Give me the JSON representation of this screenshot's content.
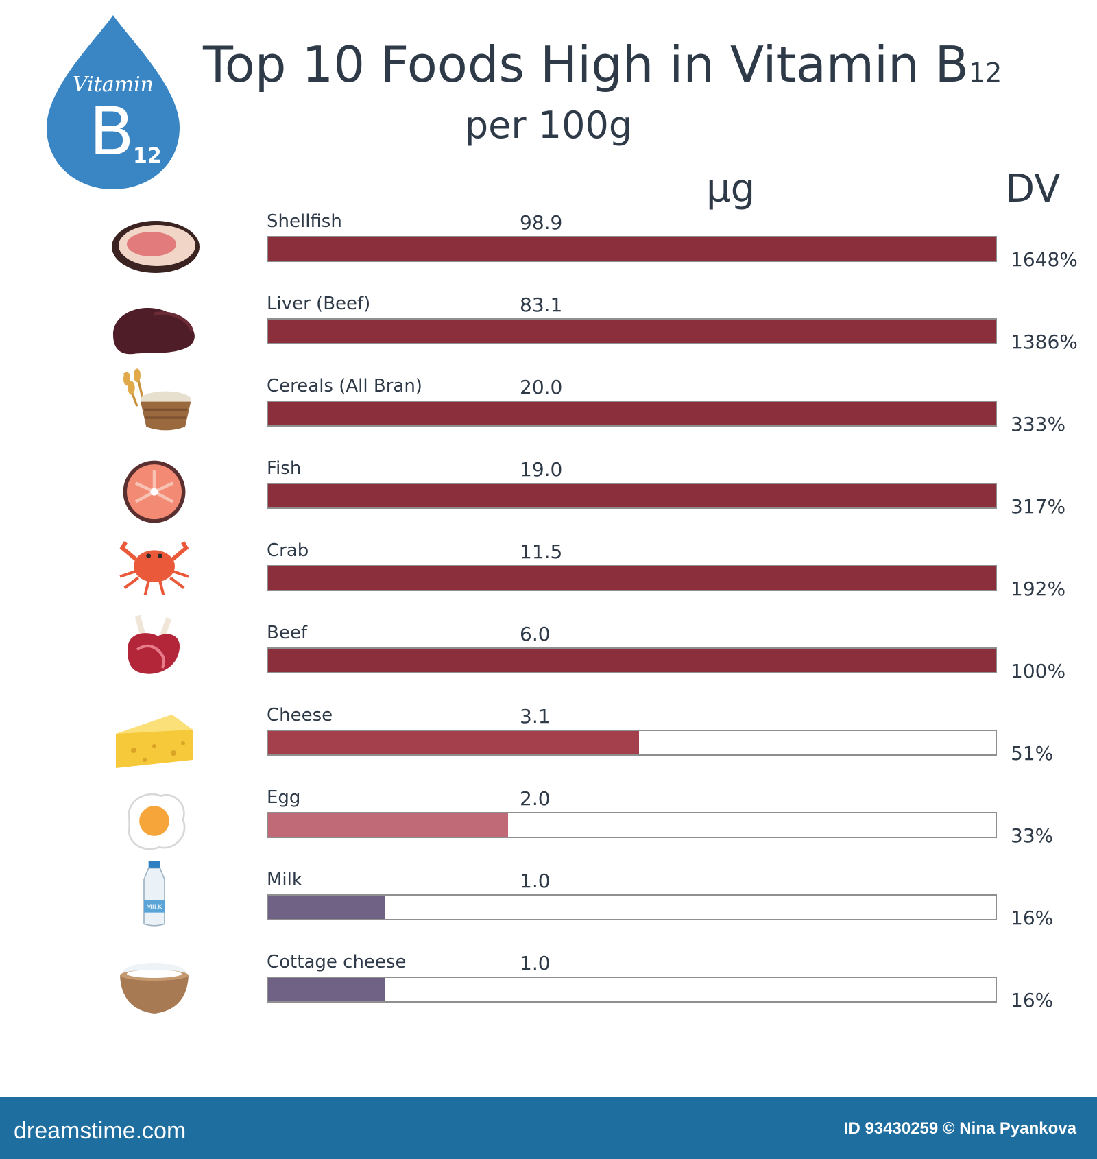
{
  "badge": {
    "word": "Vitamin",
    "letter": "B",
    "subscript": "12",
    "color": "#3a86c4"
  },
  "title": {
    "main": "Top 10 Foods High in Vitamin B",
    "subscript": "12",
    "sub": "per 100g"
  },
  "columns": {
    "ug": "µg",
    "dv": "DV"
  },
  "chart_data": {
    "type": "bar",
    "title": "Top 10 Foods High in Vitamin B12",
    "subtitle": "per 100g",
    "categories": [
      "Shellfish",
      "Liver (Beef)",
      "Cereals (All Bran)",
      "Fish",
      "Crab",
      "Beef",
      "Cheese",
      "Egg",
      "Milk",
      "Cottage cheese"
    ],
    "series": [
      {
        "name": "µg",
        "values": [
          98.9,
          83.1,
          20.0,
          19.0,
          11.5,
          6.0,
          3.1,
          2.0,
          1.0,
          1.0
        ],
        "labels": [
          "98.9",
          "83.1",
          "20.0",
          "19.0",
          "11.5",
          "6.0",
          "3.1",
          "2.0",
          "1.0",
          "1.0"
        ]
      },
      {
        "name": "DV",
        "values": [
          1648,
          1386,
          333,
          317,
          192,
          100,
          51,
          33,
          16,
          16
        ],
        "labels": [
          "1648%",
          "1386%",
          "333%",
          "317%",
          "192%",
          "100%",
          "51%",
          "33%",
          "16%",
          "16%"
        ]
      }
    ],
    "bar_max_percent": 100,
    "bar_colors": [
      "#8b2f3d",
      "#8b2f3d",
      "#8b2f3d",
      "#8b2f3d",
      "#8b2f3d",
      "#8b2f3d",
      "#a43f4c",
      "#c06a78",
      "#6f6284",
      "#6f6284"
    ],
    "icons": [
      "shellfish-icon",
      "liver-icon",
      "cereal-bowl-icon",
      "fish-steak-icon",
      "crab-icon",
      "beef-icon",
      "cheese-icon",
      "egg-icon",
      "milk-bottle-icon",
      "cottage-cheese-icon"
    ],
    "milk_label": "MILK"
  },
  "footer": {
    "site": "dreamstime.com",
    "credit": "ID 93430259 © Nina  Pyankova",
    "color": "#1f6ea0"
  }
}
